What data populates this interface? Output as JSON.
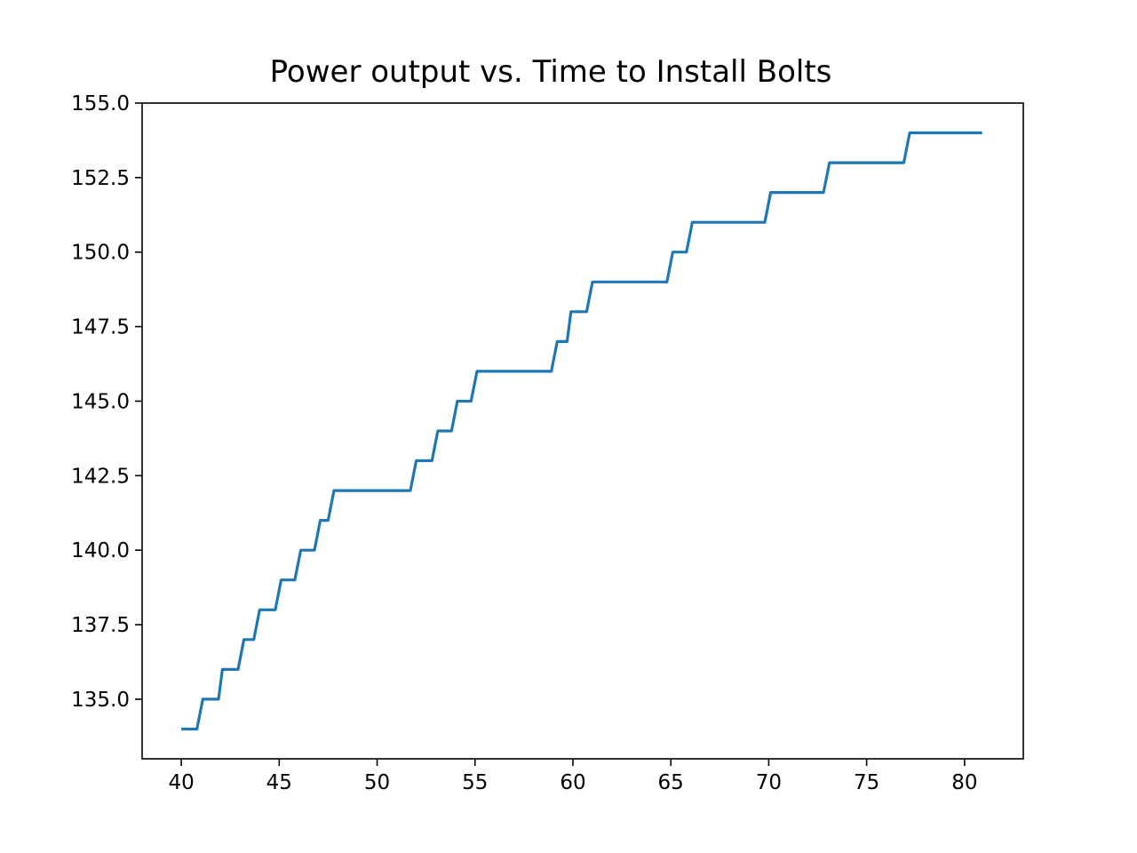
{
  "chart_data": {
    "type": "line",
    "title": "Power output vs. Time to Install Bolts",
    "xlabel": "",
    "ylabel": "",
    "xlim": [
      38,
      83
    ],
    "ylim": [
      133.0,
      155.0
    ],
    "xticks": [
      40,
      45,
      50,
      55,
      60,
      65,
      70,
      75,
      80
    ],
    "yticks": [
      135.0,
      137.5,
      140.0,
      142.5,
      145.0,
      147.5,
      150.0,
      152.5,
      155.0
    ],
    "grid": false,
    "line_color": "#1f77b4",
    "series": [
      {
        "x": [
          40.0,
          40.8,
          41.1,
          41.9,
          42.1,
          42.9,
          43.2,
          43.7,
          44.0,
          44.8,
          45.1,
          45.8,
          46.1,
          46.8,
          47.1,
          47.5,
          47.8,
          51.7,
          52.0,
          52.8,
          53.1,
          53.8,
          54.1,
          54.8,
          55.1,
          58.9,
          59.2,
          59.7,
          59.9,
          60.7,
          61.0,
          64.8,
          65.1,
          65.8,
          66.1,
          69.8,
          70.1,
          72.8,
          73.1,
          76.9,
          77.2,
          80.9
        ],
        "y": [
          134,
          134,
          135,
          135,
          136,
          136,
          137,
          137,
          138,
          138,
          139,
          139,
          140,
          140,
          141,
          141,
          142,
          142,
          143,
          143,
          144,
          144,
          145,
          145,
          146,
          146,
          147,
          147,
          148,
          148,
          149,
          149,
          150,
          150,
          151,
          151,
          152,
          152,
          153,
          153,
          154,
          154
        ]
      }
    ]
  }
}
